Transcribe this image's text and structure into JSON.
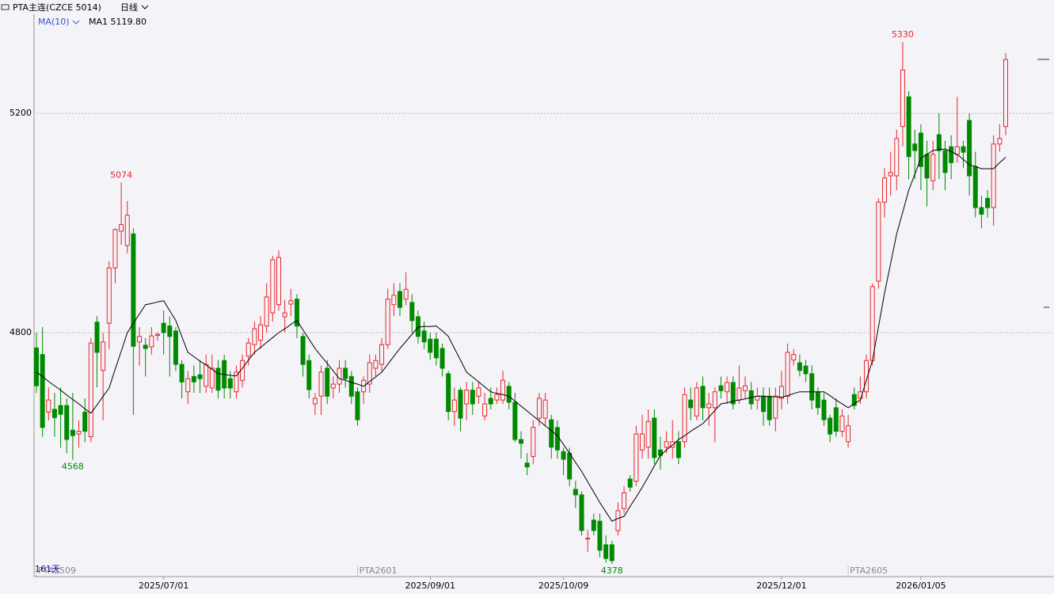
{
  "header": {
    "symbol": "PTA主连(CZCE 5014)",
    "period": "日线"
  },
  "chart_data": {
    "type": "candlestick",
    "ylim": [
      4355,
      5385
    ],
    "yticks": [
      4800,
      5200
    ],
    "grid": true,
    "up_color": "#e8262a",
    "down_color": "#008a00",
    "days_label": "161天",
    "extremes": [
      5074,
      4568,
      5330,
      4378
    ],
    "ma": {
      "name": "MA(10)",
      "legend": "MA1 5119.80",
      "color": "#000000",
      "values": [
        4728,
        4720,
        4711,
        4703,
        4695,
        4686,
        4678,
        4670,
        4661,
        4653,
        4668,
        4684,
        4699,
        4733,
        4766,
        4800,
        4817,
        4834,
        4851,
        4853,
        4856,
        4858,
        4840,
        4822,
        4793,
        4764,
        4756,
        4748,
        4741,
        4733,
        4725,
        4724,
        4722,
        4721,
        4735,
        4750,
        4764,
        4773,
        4782,
        4791,
        4800,
        4807,
        4815,
        4822,
        4805,
        4788,
        4771,
        4757,
        4744,
        4730,
        4716,
        4713,
        4709,
        4706,
        4702,
        4711,
        4719,
        4728,
        4742,
        4757,
        4771,
        4784,
        4797,
        4810,
        4811,
        4811,
        4812,
        4803,
        4793,
        4771,
        4750,
        4728,
        4719,
        4710,
        4701,
        4692,
        4689,
        4687,
        4684,
        4675,
        4666,
        4657,
        4648,
        4639,
        4630,
        4621,
        4612,
        4596,
        4580,
        4563,
        4547,
        4528,
        4509,
        4490,
        4473,
        4456,
        4461,
        4465,
        4483,
        4500,
        4518,
        4537,
        4557,
        4576,
        4586,
        4595,
        4605,
        4612,
        4620,
        4627,
        4634,
        4646,
        4658,
        4670,
        4672,
        4675,
        4677,
        4679,
        4682,
        4684,
        4684,
        4683,
        4683,
        4682,
        4685,
        4689,
        4692,
        4692,
        4692,
        4692,
        4692,
        4685,
        4677,
        4670,
        4663,
        4670,
        4677,
        4713,
        4749,
        4811,
        4872,
        4926,
        4980,
        5020,
        5060,
        5089,
        5118,
        5125,
        5132,
        5134,
        5135,
        5130,
        5125,
        5116,
        5106,
        5103,
        5099,
        5099,
        5099,
        5110,
        5119.8
      ]
    },
    "categories": [
      null,
      null,
      null,
      null,
      null,
      null,
      null,
      null,
      null,
      null,
      null,
      null,
      null,
      null,
      null,
      null,
      null,
      null,
      null,
      null,
      null,
      "2025/07/01",
      null,
      null,
      null,
      null,
      null,
      null,
      null,
      null,
      null,
      null,
      null,
      null,
      null,
      null,
      null,
      null,
      null,
      null,
      null,
      null,
      null,
      null,
      null,
      null,
      null,
      null,
      null,
      null,
      null,
      null,
      null,
      null,
      null,
      null,
      null,
      null,
      null,
      null,
      null,
      null,
      null,
      null,
      null,
      "2025/09/01",
      null,
      null,
      null,
      null,
      null,
      null,
      null,
      null,
      null,
      null,
      null,
      null,
      null,
      null,
      null,
      null,
      null,
      null,
      null,
      null,
      null,
      "2025/10/09",
      null,
      null,
      null,
      null,
      null,
      null,
      null,
      null,
      null,
      null,
      null,
      null,
      null,
      null,
      null,
      null,
      null,
      null,
      null,
      null,
      null,
      null,
      null,
      null,
      null,
      null,
      null,
      null,
      null,
      null,
      null,
      null,
      null,
      null,
      null,
      "2025/12/01",
      null,
      null,
      null,
      null,
      null,
      null,
      null,
      null,
      null,
      null,
      null,
      null,
      null,
      null,
      null,
      null,
      null,
      null,
      null,
      null,
      null,
      null,
      "2026/01/05",
      null,
      null,
      null,
      null,
      null,
      null,
      null,
      null,
      null,
      null,
      null,
      null,
      null,
      null
    ],
    "contracts": [
      "PTA2509",
      null,
      null,
      null,
      null,
      null,
      null,
      null,
      null,
      null,
      null,
      null,
      null,
      null,
      null,
      null,
      null,
      null,
      null,
      null,
      null,
      null,
      null,
      null,
      null,
      null,
      null,
      null,
      null,
      null,
      null,
      null,
      null,
      null,
      null,
      null,
      null,
      null,
      null,
      null,
      null,
      null,
      null,
      null,
      null,
      null,
      null,
      null,
      null,
      null,
      null,
      null,
      null,
      "PTA2601",
      null,
      null,
      null,
      null,
      null,
      null,
      null,
      null,
      null,
      null,
      null,
      null,
      null,
      null,
      null,
      null,
      null,
      null,
      null,
      null,
      null,
      null,
      null,
      null,
      null,
      null,
      null,
      null,
      null,
      null,
      null,
      null,
      null,
      null,
      null,
      null,
      null,
      null,
      null,
      null,
      null,
      null,
      null,
      null,
      null,
      null,
      null,
      null,
      null,
      null,
      null,
      null,
      null,
      null,
      null,
      null,
      null,
      null,
      null,
      null,
      null,
      null,
      null,
      null,
      null,
      null,
      null,
      null,
      null,
      null,
      null,
      null,
      null,
      null,
      null,
      null,
      null,
      null,
      null,
      null,
      "PTA2605",
      null,
      null,
      null,
      null,
      null,
      null,
      null,
      null,
      null,
      null,
      null,
      null,
      null,
      null,
      null,
      null,
      null,
      null,
      null,
      null,
      null,
      null,
      null,
      null,
      null,
      null
    ],
    "ohlc": [
      [
        4772,
        4800,
        4690,
        4703
      ],
      [
        4760,
        4810,
        4610,
        4627
      ],
      [
        4655,
        4700,
        4640,
        4677
      ],
      [
        4660,
        4690,
        4610,
        4645
      ],
      [
        4667,
        4700,
        4590,
        4651
      ],
      [
        4667,
        4680,
        4580,
        4605
      ],
      [
        4622,
        4690,
        4568,
        4612
      ],
      [
        4615,
        4640,
        4590,
        4620
      ],
      [
        4655,
        4680,
        4600,
        4620
      ],
      [
        4610,
        4790,
        4600,
        4781
      ],
      [
        4819,
        4830,
        4700,
        4764
      ],
      [
        4731,
        4800,
        4640,
        4783
      ],
      [
        4817,
        4930,
        4770,
        4918
      ],
      [
        4918,
        4990,
        4890,
        4988
      ],
      [
        4985,
        5074,
        4960,
        4997
      ],
      [
        4959,
        5040,
        4945,
        5014
      ],
      [
        4980,
        4990,
        4650,
        4775
      ],
      [
        4783,
        4810,
        4740,
        4793
      ],
      [
        4777,
        4790,
        4720,
        4771
      ],
      [
        4774,
        4810,
        4760,
        4794
      ],
      [
        4795,
        4800,
        4785,
        4797
      ],
      [
        4817,
        4840,
        4760,
        4800
      ],
      [
        4812,
        4830,
        4720,
        4793
      ],
      [
        4803,
        4810,
        4730,
        4742
      ],
      [
        4742,
        4750,
        4680,
        4710
      ],
      [
        4692,
        4730,
        4670,
        4716
      ],
      [
        4720,
        4740,
        4690,
        4710
      ],
      [
        4723,
        4750,
        4690,
        4716
      ],
      [
        4702,
        4760,
        4690,
        4742
      ],
      [
        4699,
        4760,
        4690,
        4735
      ],
      [
        4735,
        4750,
        4680,
        4695
      ],
      [
        4749,
        4760,
        4680,
        4699
      ],
      [
        4716,
        4730,
        4680,
        4699
      ],
      [
        4692,
        4740,
        4680,
        4728
      ],
      [
        4713,
        4760,
        4700,
        4749
      ],
      [
        4757,
        4790,
        4740,
        4781
      ],
      [
        4778,
        4820,
        4760,
        4807
      ],
      [
        4786,
        4830,
        4770,
        4814
      ],
      [
        4812,
        4890,
        4800,
        4865
      ],
      [
        4836,
        4940,
        4820,
        4933
      ],
      [
        4851,
        4950,
        4840,
        4937
      ],
      [
        4829,
        4860,
        4800,
        4836
      ],
      [
        4852,
        4880,
        4830,
        4858
      ],
      [
        4861,
        4870,
        4790,
        4812
      ],
      [
        4793,
        4800,
        4720,
        4742
      ],
      [
        4749,
        4760,
        4680,
        4696
      ],
      [
        4670,
        4690,
        4650,
        4680
      ],
      [
        4684,
        4740,
        4650,
        4728
      ],
      [
        4735,
        4750,
        4670,
        4684
      ],
      [
        4699,
        4720,
        4680,
        4706
      ],
      [
        4706,
        4750,
        4690,
        4735
      ],
      [
        4735,
        4750,
        4700,
        4716
      ],
      [
        4720,
        4730,
        4670,
        4684
      ],
      [
        4692,
        4700,
        4630,
        4641
      ],
      [
        4692,
        4720,
        4670,
        4713
      ],
      [
        4706,
        4760,
        4690,
        4745
      ],
      [
        4735,
        4760,
        4720,
        4749
      ],
      [
        4742,
        4790,
        4730,
        4778
      ],
      [
        4778,
        4880,
        4770,
        4861
      ],
      [
        4851,
        4890,
        4830,
        4868
      ],
      [
        4875,
        4890,
        4830,
        4846
      ],
      [
        4861,
        4910,
        4850,
        4879
      ],
      [
        4855,
        4870,
        4800,
        4822
      ],
      [
        4829,
        4840,
        4780,
        4793
      ],
      [
        4803,
        4820,
        4770,
        4783
      ],
      [
        4788,
        4800,
        4750,
        4764
      ],
      [
        4788,
        4800,
        4740,
        4754
      ],
      [
        4771,
        4780,
        4720,
        4735
      ],
      [
        4725,
        4730,
        4640,
        4656
      ],
      [
        4656,
        4700,
        4630,
        4677
      ],
      [
        4695,
        4700,
        4620,
        4644
      ],
      [
        4670,
        4710,
        4640,
        4695
      ],
      [
        4695,
        4710,
        4650,
        4670
      ],
      [
        4684,
        4710,
        4670,
        4699
      ],
      [
        4648,
        4690,
        4640,
        4670
      ],
      [
        4680,
        4700,
        4660,
        4670
      ],
      [
        4677,
        4700,
        4670,
        4687
      ],
      [
        4677,
        4730,
        4670,
        4713
      ],
      [
        4702,
        4710,
        4660,
        4673
      ],
      [
        4673,
        4690,
        4600,
        4605
      ],
      [
        4605,
        4620,
        4570,
        4598
      ],
      [
        4562,
        4580,
        4540,
        4555
      ],
      [
        4574,
        4640,
        4560,
        4627
      ],
      [
        4644,
        4690,
        4630,
        4680
      ],
      [
        4644,
        4690,
        4630,
        4677
      ],
      [
        4641,
        4650,
        4570,
        4591
      ],
      [
        4627,
        4640,
        4570,
        4586
      ],
      [
        4583,
        4590,
        4540,
        4569
      ],
      [
        4580,
        4590,
        4520,
        4533
      ],
      [
        4514,
        4530,
        4480,
        4504
      ],
      [
        4504,
        4510,
        4430,
        4439
      ],
      [
        4425,
        4440,
        4400,
        4425
      ],
      [
        4458,
        4470,
        4430,
        4439
      ],
      [
        4456,
        4470,
        4390,
        4403
      ],
      [
        4413,
        4430,
        4380,
        4388
      ],
      [
        4413,
        4420,
        4378,
        4384
      ],
      [
        4439,
        4490,
        4430,
        4475
      ],
      [
        4479,
        4520,
        4470,
        4508
      ],
      [
        4533,
        4540,
        4510,
        4518
      ],
      [
        4529,
        4630,
        4520,
        4615
      ],
      [
        4586,
        4650,
        4570,
        4615
      ],
      [
        4591,
        4660,
        4570,
        4638
      ],
      [
        4644,
        4660,
        4560,
        4572
      ],
      [
        4586,
        4610,
        4550,
        4576
      ],
      [
        4591,
        4620,
        4580,
        4601
      ],
      [
        4591,
        4640,
        4570,
        4601
      ],
      [
        4601,
        4620,
        4560,
        4572
      ],
      [
        4601,
        4700,
        4590,
        4687
      ],
      [
        4677,
        4700,
        4640,
        4663
      ],
      [
        4648,
        4710,
        4640,
        4699
      ],
      [
        4702,
        4720,
        4640,
        4663
      ],
      [
        4663,
        4690,
        4630,
        4670
      ],
      [
        4663,
        4700,
        4600,
        4692
      ],
      [
        4703,
        4720,
        4680,
        4694
      ],
      [
        4692,
        4720,
        4670,
        4709
      ],
      [
        4709,
        4720,
        4660,
        4670
      ],
      [
        4677,
        4740,
        4670,
        4699
      ],
      [
        4694,
        4720,
        4680,
        4703
      ],
      [
        4694,
        4710,
        4660,
        4670
      ],
      [
        4677,
        4700,
        4660,
        4684
      ],
      [
        4684,
        4700,
        4630,
        4656
      ],
      [
        4684,
        4700,
        4630,
        4641
      ],
      [
        4644,
        4700,
        4620,
        4684
      ],
      [
        4680,
        4730,
        4660,
        4702
      ],
      [
        4684,
        4780,
        4670,
        4764
      ],
      [
        4750,
        4770,
        4740,
        4760
      ],
      [
        4745,
        4760,
        4720,
        4731
      ],
      [
        4739,
        4750,
        4710,
        4725
      ],
      [
        4725,
        4740,
        4660,
        4677
      ],
      [
        4692,
        4700,
        4650,
        4663
      ],
      [
        4677,
        4690,
        4630,
        4641
      ],
      [
        4644,
        4650,
        4600,
        4615
      ],
      [
        4663,
        4680,
        4610,
        4620
      ],
      [
        4620,
        4660,
        4610,
        4648
      ],
      [
        4601,
        4650,
        4590,
        4630
      ],
      [
        4687,
        4700,
        4660,
        4667
      ],
      [
        4680,
        4720,
        4670,
        4692
      ],
      [
        4692,
        4760,
        4680,
        4749
      ],
      [
        4749,
        4890,
        4740,
        4884
      ],
      [
        4894,
        5045,
        4880,
        5038
      ],
      [
        5038,
        5100,
        5010,
        5082
      ],
      [
        5086,
        5130,
        5050,
        5092
      ],
      [
        5086,
        5170,
        5060,
        5154
      ],
      [
        5176,
        5330,
        5140,
        5279
      ],
      [
        5230,
        5240,
        5080,
        5121
      ],
      [
        5144,
        5170,
        5080,
        5132
      ],
      [
        5164,
        5180,
        5060,
        5103
      ],
      [
        5125,
        5150,
        5030,
        5082
      ],
      [
        5077,
        5150,
        5060,
        5125
      ],
      [
        5161,
        5200,
        5080,
        5132
      ],
      [
        5132,
        5150,
        5060,
        5092
      ],
      [
        5139,
        5160,
        5080,
        5110
      ],
      [
        5125,
        5230,
        5110,
        5139
      ],
      [
        5139,
        5150,
        5100,
        5129
      ],
      [
        5187,
        5200,
        5050,
        5086
      ],
      [
        5103,
        5130,
        5010,
        5028
      ],
      [
        5028,
        5050,
        4990,
        5016
      ],
      [
        5045,
        5060,
        5010,
        5028
      ],
      [
        5028,
        5160,
        4995,
        5144
      ],
      [
        5144,
        5180,
        5130,
        5154
      ],
      [
        5176,
        5310,
        5160,
        5298
      ]
    ]
  }
}
